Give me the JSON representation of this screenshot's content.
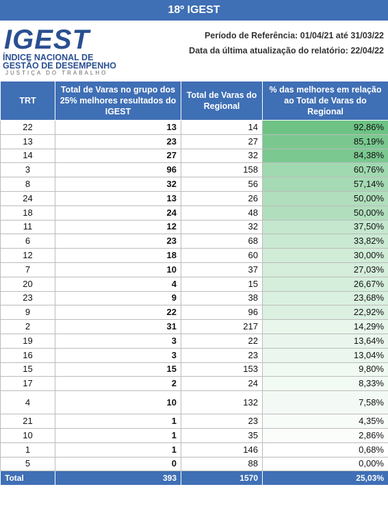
{
  "header": {
    "title": "18º IGEST"
  },
  "logo": {
    "brand": "IGEST",
    "line1": "ÍNDICE NACIONAL DE",
    "line2": "GESTÃO DE DESEMPENHO",
    "line3": "JUSTIÇA DO TRABALHO"
  },
  "meta": {
    "period": "Período de Referência: 01/04/21 até 31/03/22",
    "updated": "Data da última atualização do relatório: 22/04/22"
  },
  "table": {
    "columns": [
      "TRT",
      "Total de Varas no grupo dos 25% melhores resultados do IGEST",
      "Total de Varas do Regional",
      "% das melhores em relação ao Total de Varas do Regional"
    ],
    "rows": [
      {
        "trt": "22",
        "top": "13",
        "total": "14",
        "pct": "92,86%",
        "fill": 0.9286
      },
      {
        "trt": "13",
        "top": "23",
        "total": "27",
        "pct": "85,19%",
        "fill": 0.8519
      },
      {
        "trt": "14",
        "top": "27",
        "total": "32",
        "pct": "84,38%",
        "fill": 0.8438
      },
      {
        "trt": "3",
        "top": "96",
        "total": "158",
        "pct": "60,76%",
        "fill": 0.6076
      },
      {
        "trt": "8",
        "top": "32",
        "total": "56",
        "pct": "57,14%",
        "fill": 0.5714
      },
      {
        "trt": "24",
        "top": "13",
        "total": "26",
        "pct": "50,00%",
        "fill": 0.5
      },
      {
        "trt": "18",
        "top": "24",
        "total": "48",
        "pct": "50,00%",
        "fill": 0.5
      },
      {
        "trt": "11",
        "top": "12",
        "total": "32",
        "pct": "37,50%",
        "fill": 0.375
      },
      {
        "trt": "6",
        "top": "23",
        "total": "68",
        "pct": "33,82%",
        "fill": 0.3382
      },
      {
        "trt": "12",
        "top": "18",
        "total": "60",
        "pct": "30,00%",
        "fill": 0.3
      },
      {
        "trt": "7",
        "top": "10",
        "total": "37",
        "pct": "27,03%",
        "fill": 0.2703
      },
      {
        "trt": "20",
        "top": "4",
        "total": "15",
        "pct": "26,67%",
        "fill": 0.2667
      },
      {
        "trt": "23",
        "top": "9",
        "total": "38",
        "pct": "23,68%",
        "fill": 0.2368
      },
      {
        "trt": "9",
        "top": "22",
        "total": "96",
        "pct": "22,92%",
        "fill": 0.2292
      },
      {
        "trt": "2",
        "top": "31",
        "total": "217",
        "pct": "14,29%",
        "fill": 0.1429
      },
      {
        "trt": "19",
        "top": "3",
        "total": "22",
        "pct": "13,64%",
        "fill": 0.1364
      },
      {
        "trt": "16",
        "top": "3",
        "total": "23",
        "pct": "13,04%",
        "fill": 0.1304
      },
      {
        "trt": "15",
        "top": "15",
        "total": "153",
        "pct": "9,80%",
        "fill": 0.098
      },
      {
        "trt": "17",
        "top": "2",
        "total": "24",
        "pct": "8,33%",
        "fill": 0.0833
      },
      {
        "trt": "4",
        "top": "10",
        "total": "132",
        "pct": "7,58%",
        "fill": 0.0758,
        "tall": true
      },
      {
        "trt": "21",
        "top": "1",
        "total": "23",
        "pct": "4,35%",
        "fill": 0.0435
      },
      {
        "trt": "10",
        "top": "1",
        "total": "35",
        "pct": "2,86%",
        "fill": 0.0286
      },
      {
        "trt": "1",
        "top": "1",
        "total": "146",
        "pct": "0,68%",
        "fill": 0.0068
      },
      {
        "trt": "5",
        "top": "0",
        "total": "88",
        "pct": "0,00%",
        "fill": 0
      }
    ],
    "total": {
      "label": "Total",
      "top": "393",
      "total": "1570",
      "pct": "25,03%"
    }
  },
  "colors": {
    "header_blue": "#3f6fb5",
    "scale_high": "#63be7b",
    "scale_low": "#ffffff"
  }
}
